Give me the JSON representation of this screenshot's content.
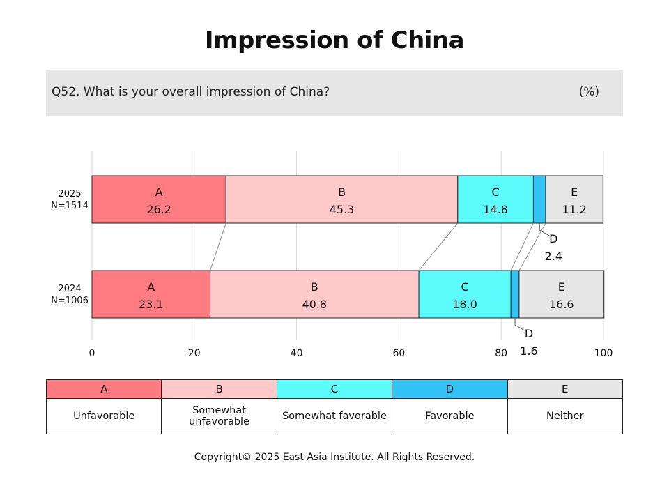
{
  "title": "Impression of China",
  "question": {
    "text": "Q52. What is your overall impression of China?",
    "unit": "(%)"
  },
  "chart_data": {
    "type": "bar",
    "orientation": "horizontal",
    "stacked": true,
    "xlim": [
      0,
      100
    ],
    "xticks": [
      "0",
      "20",
      "40",
      "60",
      "80",
      "100"
    ],
    "grid": true,
    "categories": [
      {
        "label_year": "2025",
        "label_n": "N=1514"
      },
      {
        "label_year": "2024",
        "label_n": "N=1006"
      }
    ],
    "series": [
      {
        "name": "A",
        "color": "#ff7b82",
        "values": [
          26.2,
          23.1
        ],
        "labels": [
          "26.2",
          "23.1"
        ]
      },
      {
        "name": "B",
        "color": "#ffc9ca",
        "values": [
          45.3,
          40.8
        ],
        "labels": [
          "45.3",
          "40.8"
        ]
      },
      {
        "name": "C",
        "color": "#5dfcfc",
        "values": [
          14.8,
          18.0
        ],
        "labels": [
          "14.8",
          "18.0"
        ]
      },
      {
        "name": "D",
        "color": "#33c3f5",
        "values": [
          2.4,
          1.6
        ],
        "labels": [
          "2.4",
          "1.6"
        ]
      },
      {
        "name": "E",
        "color": "#e6e6e6",
        "values": [
          11.2,
          16.6
        ],
        "labels": [
          "11.2",
          "16.6"
        ]
      }
    ]
  },
  "legend": [
    {
      "key": "A",
      "desc": "Unfavorable",
      "color": "#ff7b82"
    },
    {
      "key": "B",
      "desc": "Somewhat\nunfavorable",
      "color": "#ffc9ca"
    },
    {
      "key": "C",
      "desc": "Somewhat favorable",
      "color": "#5dfcfc"
    },
    {
      "key": "D",
      "desc": "Favorable",
      "color": "#33c3f5"
    },
    {
      "key": "E",
      "desc": "Neither",
      "color": "#e6e6e6"
    }
  ],
  "copyright": "Copyright© 2025 East Asia Institute. All Rights Reserved."
}
